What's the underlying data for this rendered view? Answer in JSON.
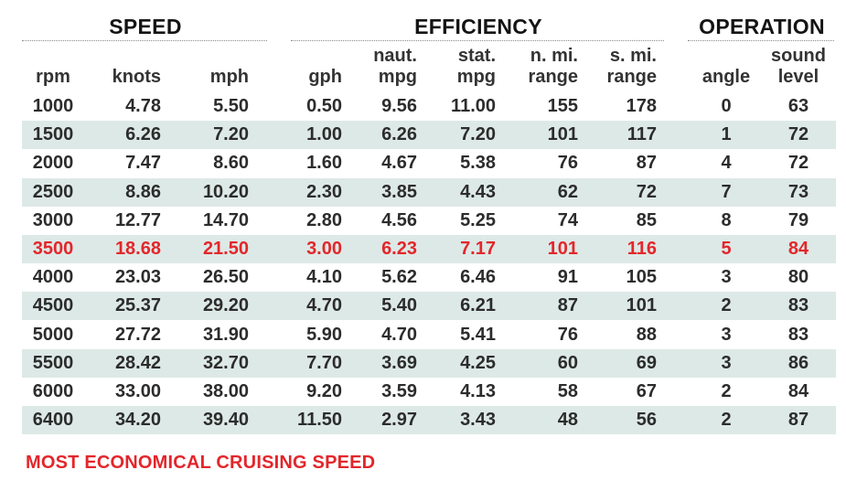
{
  "groups": [
    {
      "key": "speed",
      "label": "SPEED"
    },
    {
      "key": "efficiency",
      "label": "EFFICIENCY"
    },
    {
      "key": "operation",
      "label": "OPERATION"
    }
  ],
  "headers": [
    [
      "rpm"
    ],
    [
      "knots"
    ],
    [
      "mph"
    ],
    [
      "gph"
    ],
    [
      "naut.",
      "mpg"
    ],
    [
      "stat.",
      "mpg"
    ],
    [
      "n. mi.",
      "range"
    ],
    [
      "s. mi.",
      "range"
    ],
    [
      "angle"
    ],
    [
      "sound",
      "level"
    ]
  ],
  "rows": [
    [
      "1000",
      "4.78",
      "5.50",
      "0.50",
      "9.56",
      "11.00",
      "155",
      "178",
      "0",
      "63"
    ],
    [
      "1500",
      "6.26",
      "7.20",
      "1.00",
      "6.26",
      "7.20",
      "101",
      "117",
      "1",
      "72"
    ],
    [
      "2000",
      "7.47",
      "8.60",
      "1.60",
      "4.67",
      "5.38",
      "76",
      "87",
      "4",
      "72"
    ],
    [
      "2500",
      "8.86",
      "10.20",
      "2.30",
      "3.85",
      "4.43",
      "62",
      "72",
      "7",
      "73"
    ],
    [
      "3000",
      "12.77",
      "14.70",
      "2.80",
      "4.56",
      "5.25",
      "74",
      "85",
      "8",
      "79"
    ],
    [
      "3500",
      "18.68",
      "21.50",
      "3.00",
      "6.23",
      "7.17",
      "101",
      "116",
      "5",
      "84"
    ],
    [
      "4000",
      "23.03",
      "26.50",
      "4.10",
      "5.62",
      "6.46",
      "91",
      "105",
      "3",
      "80"
    ],
    [
      "4500",
      "25.37",
      "29.20",
      "4.70",
      "5.40",
      "6.21",
      "87",
      "101",
      "2",
      "83"
    ],
    [
      "5000",
      "27.72",
      "31.90",
      "5.90",
      "4.70",
      "5.41",
      "76",
      "88",
      "3",
      "83"
    ],
    [
      "5500",
      "28.42",
      "32.70",
      "7.70",
      "3.69",
      "4.25",
      "60",
      "69",
      "3",
      "86"
    ],
    [
      "6000",
      "33.00",
      "38.00",
      "9.20",
      "3.59",
      "4.13",
      "58",
      "67",
      "2",
      "84"
    ],
    [
      "6400",
      "34.20",
      "39.40",
      "11.50",
      "2.97",
      "3.43",
      "48",
      "56",
      "2",
      "87"
    ]
  ],
  "highlight_row": 5,
  "footnote": "MOST ECONOMICAL CRUISING SPEED",
  "colors": {
    "highlight": "#e3262b",
    "stripe": "#dde9e6",
    "text": "#2c2c2c"
  },
  "chart_data": {
    "type": "table",
    "columns": [
      "rpm",
      "knots",
      "mph",
      "gph",
      "naut. mpg",
      "stat. mpg",
      "n. mi. range",
      "s. mi. range",
      "angle",
      "sound level"
    ],
    "column_groups": [
      {
        "label": "SPEED",
        "columns": [
          "rpm",
          "knots",
          "mph"
        ]
      },
      {
        "label": "EFFICIENCY",
        "columns": [
          "gph",
          "naut. mpg",
          "stat. mpg",
          "n. mi. range",
          "s. mi. range"
        ]
      },
      {
        "label": "OPERATION",
        "columns": [
          "angle",
          "sound level"
        ]
      }
    ],
    "values": [
      [
        1000,
        4.78,
        5.5,
        0.5,
        9.56,
        11.0,
        155,
        178,
        0,
        63
      ],
      [
        1500,
        6.26,
        7.2,
        1.0,
        6.26,
        7.2,
        101,
        117,
        1,
        72
      ],
      [
        2000,
        7.47,
        8.6,
        1.6,
        4.67,
        5.38,
        76,
        87,
        4,
        72
      ],
      [
        2500,
        8.86,
        10.2,
        2.3,
        3.85,
        4.43,
        62,
        72,
        7,
        73
      ],
      [
        3000,
        12.77,
        14.7,
        2.8,
        4.56,
        5.25,
        74,
        85,
        8,
        79
      ],
      [
        3500,
        18.68,
        21.5,
        3.0,
        6.23,
        7.17,
        101,
        116,
        5,
        84
      ],
      [
        4000,
        23.03,
        26.5,
        4.1,
        5.62,
        6.46,
        91,
        105,
        3,
        80
      ],
      [
        4500,
        25.37,
        29.2,
        4.7,
        5.4,
        6.21,
        87,
        101,
        2,
        83
      ],
      [
        5000,
        27.72,
        31.9,
        5.9,
        4.7,
        5.41,
        76,
        88,
        3,
        83
      ],
      [
        5500,
        28.42,
        32.7,
        7.7,
        3.69,
        4.25,
        60,
        69,
        3,
        86
      ],
      [
        6000,
        33.0,
        38.0,
        9.2,
        3.59,
        4.13,
        58,
        67,
        2,
        84
      ],
      [
        6400,
        34.2,
        39.4,
        11.5,
        2.97,
        3.43,
        48,
        56,
        2,
        87
      ]
    ],
    "highlighted_rpm": 3500,
    "annotation": "MOST ECONOMICAL CRUISING SPEED"
  }
}
